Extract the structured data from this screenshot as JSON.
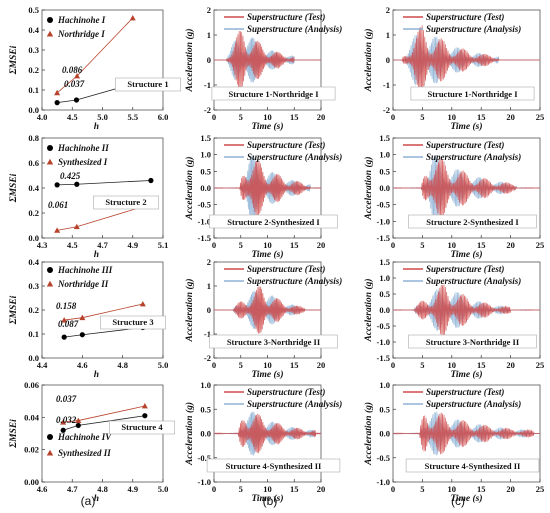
{
  "colors": {
    "black": "#000000",
    "triangle": "#b8432c",
    "test": "#cf4a4a",
    "analysis": "#8fb2d6",
    "frame": "#555555"
  },
  "panel_labels": [
    "(a)",
    "(b)",
    "(c)"
  ],
  "chart_data": [
    {
      "type": "scatter",
      "xlabel": "h",
      "ylabel": "ΣMSEi",
      "xlim": [
        4,
        6
      ],
      "ylim": [
        0,
        0.5
      ],
      "xticks": [
        "4.0",
        "4.5",
        "5.0",
        "5.5",
        "6.0"
      ],
      "yticks": [
        "0.0",
        "0.1",
        "0.2",
        "0.3",
        "0.4",
        "0.5"
      ],
      "legend": [
        "Hachinohe I",
        "Northridge I"
      ],
      "box_label": "Structure 1",
      "annotations": [
        "0.086",
        "0.037"
      ],
      "series": [
        {
          "name": "Hachinohe I",
          "marker": "circle",
          "x": [
            4.25,
            4.57,
            5.5
          ],
          "y": [
            0.037,
            0.05,
            0.13
          ]
        },
        {
          "name": "Northridge I",
          "marker": "triangle",
          "x": [
            4.25,
            4.58,
            5.5
          ],
          "y": [
            0.086,
            0.17,
            0.46
          ]
        }
      ]
    },
    {
      "type": "scatter",
      "xlabel": "h",
      "ylabel": "ΣMSEi",
      "xlim": [
        4.3,
        5.1
      ],
      "ylim": [
        0,
        0.8
      ],
      "xticks": [
        "4.3",
        "4.5",
        "4.7",
        "4.9",
        "5.1"
      ],
      "yticks": [
        "0.0",
        "0.2",
        "0.4",
        "0.6",
        "0.8"
      ],
      "legend": [
        "Hachinohe II",
        "Synthesized I"
      ],
      "box_label": "Structure 2",
      "annotations": [
        "0.425",
        "0.061"
      ],
      "series": [
        {
          "name": "Hachinohe II",
          "marker": "circle",
          "x": [
            4.4,
            4.53,
            5.02
          ],
          "y": [
            0.425,
            0.43,
            0.46
          ]
        },
        {
          "name": "Synthesized I",
          "marker": "triangle",
          "x": [
            4.4,
            4.53,
            5.02
          ],
          "y": [
            0.061,
            0.09,
            0.27
          ]
        }
      ]
    },
    {
      "type": "scatter",
      "xlabel": "h",
      "ylabel": "ΣMSEi",
      "xlim": [
        4.4,
        5.0
      ],
      "ylim": [
        0,
        0.4
      ],
      "xticks": [
        "4.4",
        "4.6",
        "4.8",
        "5.0"
      ],
      "yticks": [
        "0.0",
        "0.1",
        "0.2",
        "0.3",
        "0.4"
      ],
      "legend": [
        "Hachinohe III",
        "Northridge II"
      ],
      "box_label": "Structure 3",
      "annotations": [
        "0.158",
        "0.087"
      ],
      "series": [
        {
          "name": "Hachinohe III",
          "marker": "circle",
          "x": [
            4.51,
            4.6,
            4.9
          ],
          "y": [
            0.087,
            0.097,
            0.127
          ]
        },
        {
          "name": "Northridge II",
          "marker": "triangle",
          "x": [
            4.51,
            4.6,
            4.9
          ],
          "y": [
            0.158,
            0.168,
            0.225
          ]
        }
      ]
    },
    {
      "type": "scatter",
      "xlabel": "h",
      "ylabel": "ΣMSEi",
      "xlim": [
        4.6,
        5.0
      ],
      "ylim": [
        0,
        0.06
      ],
      "xticks": [
        "4.6",
        "4.7",
        "4.8",
        "4.9",
        "5.0"
      ],
      "yticks": [
        "0.00",
        "0.02",
        "0.04",
        "0.06"
      ],
      "legend": [
        "Hachinohe IV",
        "Synthesized II"
      ],
      "box_label": "Structure 4",
      "annotations": [
        "0.037",
        "0.032"
      ],
      "series": [
        {
          "name": "Hachinohe IV",
          "marker": "circle",
          "x": [
            4.67,
            4.72,
            4.94
          ],
          "y": [
            0.032,
            0.035,
            0.041
          ]
        },
        {
          "name": "Synthesized II",
          "marker": "triangle",
          "x": [
            4.67,
            4.72,
            4.94
          ],
          "y": [
            0.037,
            0.038,
            0.047
          ]
        }
      ]
    },
    {
      "type": "line",
      "xlabel": "Time (s)",
      "ylabel": "Acceleration (g)",
      "xlim": [
        0,
        20
      ],
      "ylim": [
        -2,
        2
      ],
      "xticks": [
        "0",
        "5",
        "10",
        "15",
        "20"
      ],
      "yticks": [
        "-2",
        "-1",
        "0",
        "1",
        "2"
      ],
      "legend": [
        "Superstructure (Test)",
        "Superstructure (Analysis)"
      ],
      "box_label": "Structure 1-Northridge I",
      "signal": {
        "start": 2.2,
        "peak": 5.5,
        "end": 15,
        "amplitude": 1.45
      }
    },
    {
      "type": "line",
      "xlabel": "Time (s)",
      "ylabel": "Acceleration (g)",
      "xlim": [
        0,
        25
      ],
      "ylim": [
        -2,
        2
      ],
      "xticks": [
        "0",
        "5",
        "10",
        "15",
        "20",
        "25"
      ],
      "yticks": [
        "-2",
        "-1",
        "0",
        "1",
        "2"
      ],
      "legend": [
        "Superstructure (Test)",
        "Superstructure (Analysis)"
      ],
      "box_label": "Structure 1-Northridge I",
      "signal": {
        "start": 1.5,
        "peak": 5,
        "end": 18,
        "amplitude": 1.5
      }
    },
    {
      "type": "line",
      "xlabel": "Time (s)",
      "ylabel": "Acceleration (g)",
      "xlim": [
        0,
        20
      ],
      "ylim": [
        -1.5,
        1.5
      ],
      "xticks": [
        "0",
        "5",
        "10",
        "15",
        "20"
      ],
      "yticks": [
        "-1.5",
        "-1.0",
        "-0.5",
        "0.0",
        "0.5",
        "1.0",
        "1.5"
      ],
      "legend": [
        "Superstructure (Test)",
        "Superstructure (Analysis)"
      ],
      "box_label": "Structure 2-Synthesized I",
      "signal": {
        "start": 4.8,
        "peak": 6.5,
        "end": 18,
        "amplitude": 1.2
      }
    },
    {
      "type": "line",
      "xlabel": "Time (s)",
      "ylabel": "Acceleration (g)",
      "xlim": [
        0,
        25
      ],
      "ylim": [
        -1.5,
        1.5
      ],
      "xticks": [
        "0",
        "5",
        "10",
        "15",
        "20",
        "25"
      ],
      "yticks": [
        "-1.5",
        "-1.0",
        "-0.5",
        "0.0",
        "0.5",
        "1.0",
        "1.5"
      ],
      "legend": [
        "Superstructure (Test)",
        "Superstructure (Analysis)"
      ],
      "box_label": "Structure 2-Synthesized I",
      "signal": {
        "start": 4.8,
        "peak": 6.5,
        "end": 21,
        "amplitude": 1.2
      }
    },
    {
      "type": "line",
      "xlabel": "Time (s)",
      "ylabel": "Acceleration (g)",
      "xlim": [
        0,
        20
      ],
      "ylim": [
        -2,
        2
      ],
      "xticks": [
        "0",
        "5",
        "10",
        "15",
        "20"
      ],
      "yticks": [
        "-2",
        "-1",
        "0",
        "1",
        "2"
      ],
      "legend": [
        "Superstructure (Test)",
        "Superstructure (Analysis)"
      ],
      "box_label": "Structure 3-Northridge II",
      "signal": {
        "start": 3.5,
        "peak": 9,
        "end": 17,
        "amplitude": 1.1
      }
    },
    {
      "type": "line",
      "xlabel": "Time (s)",
      "ylabel": "Acceleration (g)",
      "xlim": [
        0,
        25
      ],
      "ylim": [
        -1.5,
        1.5
      ],
      "xticks": [
        "0",
        "5",
        "10",
        "15",
        "20",
        "25"
      ],
      "yticks": [
        "-1.5",
        "-1.0",
        "-0.5",
        "0.0",
        "0.5",
        "1.0",
        "1.5"
      ],
      "legend": [
        "Superstructure (Test)",
        "Superstructure (Analysis)"
      ],
      "box_label": "Structure 3-Northridge II",
      "signal": {
        "start": 3.5,
        "peak": 9,
        "end": 20,
        "amplitude": 0.9
      }
    },
    {
      "type": "line",
      "xlabel": "Time (s)",
      "ylabel": "Acceleration (g)",
      "xlim": [
        0,
        20
      ],
      "ylim": [
        -1,
        1
      ],
      "xticks": [
        "0",
        "5",
        "10",
        "15",
        "20"
      ],
      "yticks": [
        "-1.0",
        "-0.5",
        "0.0",
        "0.5",
        "1.0"
      ],
      "legend": [
        "Superstructure (Test)",
        "Superstructure (Analysis)"
      ],
      "box_label": "Structure 4-Synthesized II",
      "signal": {
        "start": 4.5,
        "peak": 6,
        "end": 19,
        "amplitude": 0.6
      }
    },
    {
      "type": "line",
      "xlabel": "Time (s)",
      "ylabel": "Acceleration (g)",
      "xlim": [
        0,
        25
      ],
      "ylim": [
        -1,
        1
      ],
      "xticks": [
        "0",
        "5",
        "10",
        "15",
        "20",
        "25"
      ],
      "yticks": [
        "-1.0",
        "-0.5",
        "0.0",
        "0.5",
        "1.0"
      ],
      "legend": [
        "Superstructure (Test)",
        "Superstructure (Analysis)"
      ],
      "box_label": "Structure 4-Synthesized II",
      "signal": {
        "start": 4.5,
        "peak": 5.5,
        "end": 24,
        "amplitude": 0.6
      }
    }
  ]
}
